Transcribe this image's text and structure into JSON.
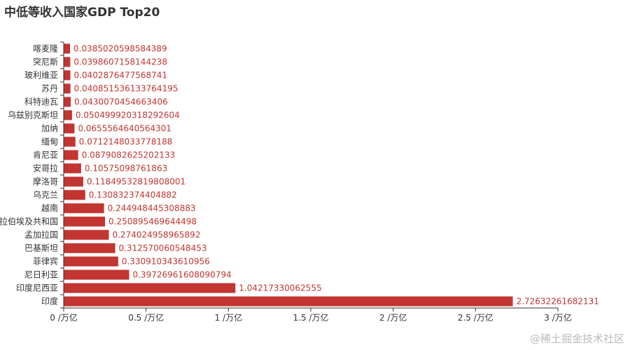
{
  "chart_data": {
    "type": "bar",
    "orientation": "horizontal",
    "title": "中低等收入国家GDP Top20",
    "categories": [
      "印度",
      "印度尼西亚",
      "尼日利亚",
      "菲律宾",
      "巴基斯坦",
      "孟加拉国",
      "阿拉伯埃及共和国",
      "越南",
      "乌克兰",
      "摩洛哥",
      "安哥拉",
      "肯尼亚",
      "缅甸",
      "加纳",
      "乌兹别克斯坦",
      "科特迪瓦",
      "苏丹",
      "玻利维亚",
      "突尼斯",
      "喀麦隆"
    ],
    "values": [
      2.72632261682131,
      1.04217330062555,
      0.39726961608090794,
      0.330910343610956,
      0.312570060548453,
      0.274024958965892,
      0.250895469644498,
      0.244948445308883,
      0.130832374404882,
      0.11849532819808001,
      0.10575098761863,
      0.0879082625202133,
      0.0712148033778188,
      0.0655564640564301,
      0.0504999203182926,
      0.0430070454663406,
      0.0408515361337642,
      0.0402876477568741,
      0.0398607158144238,
      0.0385020598584389
    ],
    "value_labels": [
      "2.72632261682131",
      "1.04217330062555",
      "0.39726961608090794",
      "0.330910343610956",
      "0.312570060548453",
      "0.274024958965892",
      "0.250895469644498",
      "0.244948445308883",
      "0.130832374404882",
      "0.11849532819808001",
      "0.10575098761863",
      "0.0879082625202133",
      "0.0712148033778188",
      "0.0655564640564301",
      "0.050499920318292604",
      "0.0430070454663406",
      "0.040851536133764195",
      "0.0402876477568741",
      "0.0398607158144238",
      "0.0385020598584389"
    ],
    "x_ticks": [
      "0 /万亿",
      "0.5 /万亿",
      "1 /万亿",
      "1.5 /万亿",
      "2 /万亿",
      "2.5 /万亿",
      "3 /万亿"
    ],
    "x_tick_values": [
      0,
      0.5,
      1,
      1.5,
      2,
      2.5,
      3
    ],
    "xlim": [
      0,
      3
    ],
    "grid": false,
    "legend": "none",
    "bar_color": "#c23531",
    "label_color": "#c23531",
    "axis_color": "#333333"
  },
  "watermark": "@稀土掘金技术社区"
}
